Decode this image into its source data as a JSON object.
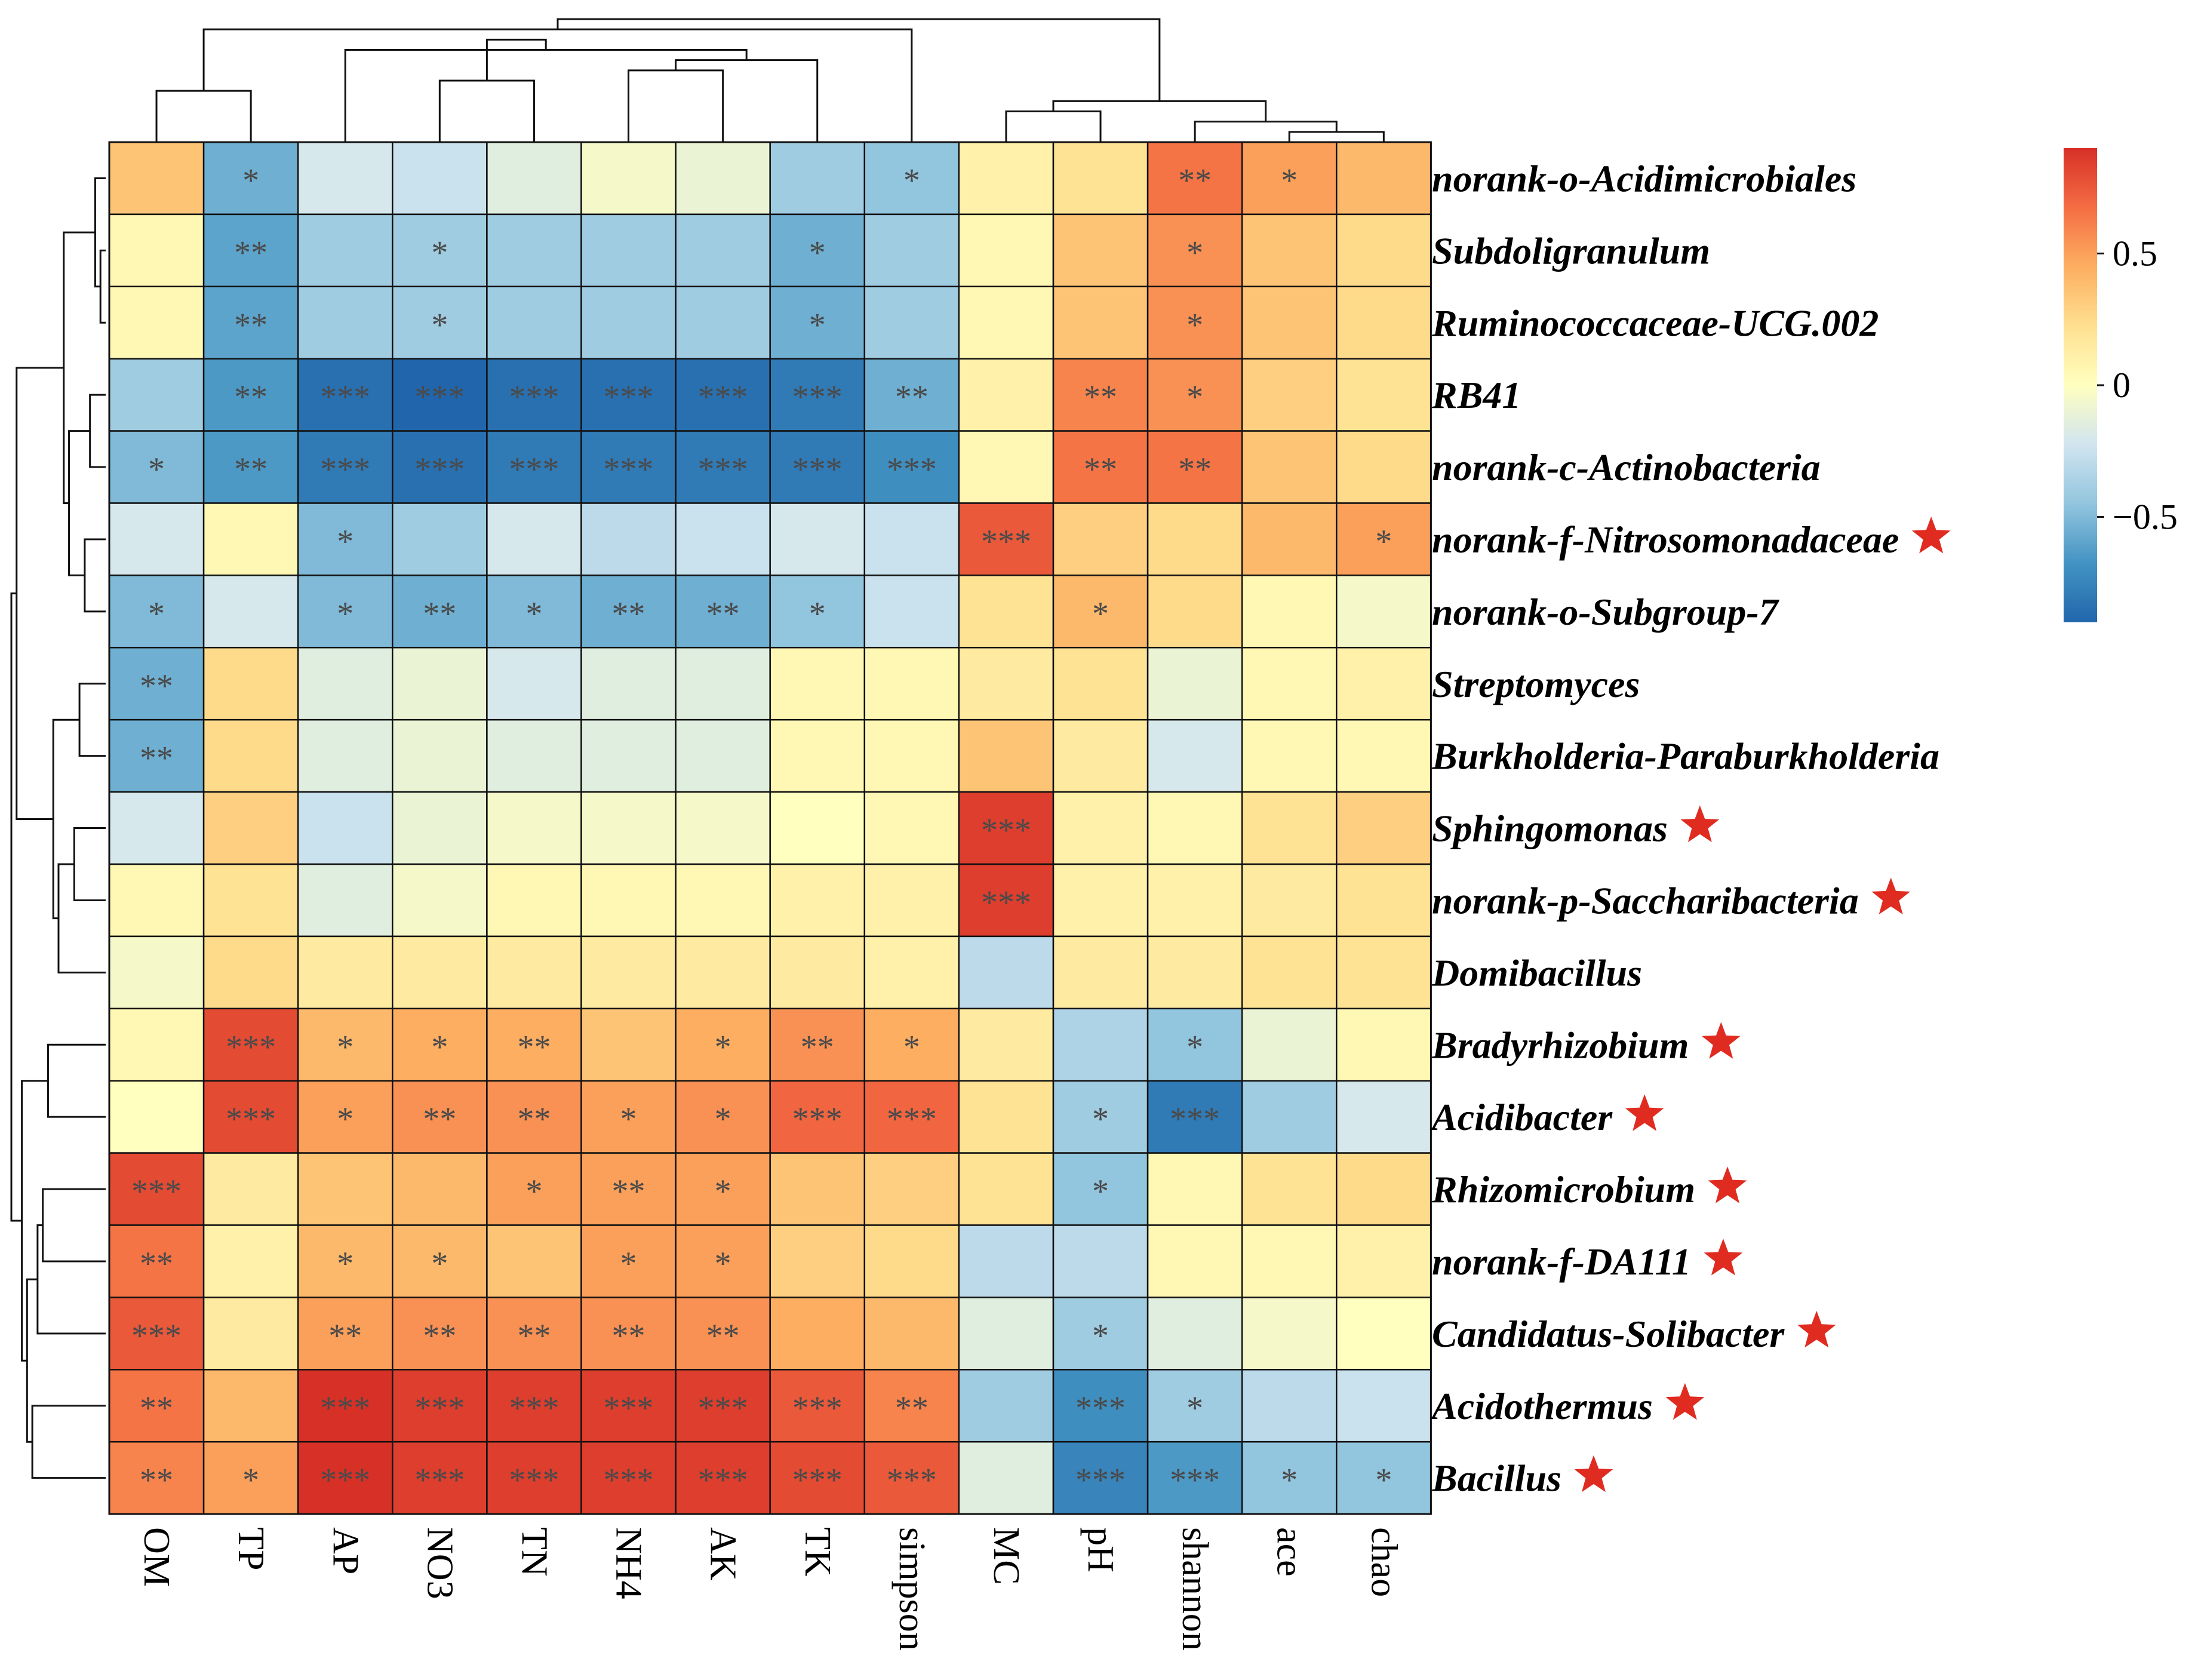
{
  "chart_data": {
    "type": "heatmap",
    "title": "",
    "xlabel": "",
    "ylabel": "",
    "columns": [
      "OM",
      "TP",
      "AP",
      "NO3",
      "TN",
      "NH4",
      "AK",
      "TK",
      "simpson",
      "MC",
      "pH",
      "shannon",
      "ace",
      "chao"
    ],
    "rows": [
      {
        "name": "norank-o-Acidimicrobiales",
        "star": false
      },
      {
        "name": "Subdoligranulum",
        "star": false
      },
      {
        "name": "Ruminococcaceae-UCG.002",
        "star": false
      },
      {
        "name": "RB41",
        "star": false
      },
      {
        "name": "norank-c-Actinobacteria",
        "star": false
      },
      {
        "name": "norank-f-Nitrosomonadaceae",
        "star": true
      },
      {
        "name": "norank-o-Subgroup-7",
        "star": false
      },
      {
        "name": "Streptomyces",
        "star": false
      },
      {
        "name": "Burkholderia-Paraburkholderia",
        "star": false
      },
      {
        "name": "Sphingomonas",
        "star": true
      },
      {
        "name": "norank-p-Saccharibacteria",
        "star": true
      },
      {
        "name": "Domibacillus",
        "star": false
      },
      {
        "name": "Bradyrhizobium",
        "star": true
      },
      {
        "name": "Acidibacter",
        "star": true
      },
      {
        "name": "Rhizomicrobium",
        "star": true
      },
      {
        "name": "norank-f-DA111",
        "star": true
      },
      {
        "name": "Candidatus-Solibacter",
        "star": true
      },
      {
        "name": "Acidothermus",
        "star": true
      },
      {
        "name": "Bacillus",
        "star": true
      }
    ],
    "values": [
      [
        0.35,
        -0.55,
        -0.2,
        -0.25,
        -0.15,
        -0.05,
        -0.1,
        -0.4,
        -0.45,
        0.1,
        0.2,
        0.65,
        0.5,
        0.4
      ],
      [
        0.05,
        -0.6,
        -0.4,
        -0.4,
        -0.4,
        -0.4,
        -0.4,
        -0.55,
        -0.4,
        0.05,
        0.35,
        0.55,
        0.35,
        0.25
      ],
      [
        0.05,
        -0.6,
        -0.4,
        -0.4,
        -0.4,
        -0.4,
        -0.4,
        -0.55,
        -0.4,
        0.05,
        0.35,
        0.55,
        0.35,
        0.25
      ],
      [
        -0.4,
        -0.65,
        -0.85,
        -0.9,
        -0.85,
        -0.85,
        -0.85,
        -0.8,
        -0.55,
        0.1,
        0.6,
        0.55,
        0.3,
        0.2
      ],
      [
        -0.5,
        -0.65,
        -0.8,
        -0.85,
        -0.8,
        -0.8,
        -0.8,
        -0.8,
        -0.7,
        0.05,
        0.65,
        0.65,
        0.35,
        0.25
      ],
      [
        -0.2,
        0.05,
        -0.5,
        -0.4,
        -0.2,
        -0.3,
        -0.25,
        -0.2,
        -0.25,
        0.75,
        0.3,
        0.25,
        0.4,
        0.5
      ],
      [
        -0.5,
        -0.2,
        -0.5,
        -0.55,
        -0.5,
        -0.55,
        -0.55,
        -0.45,
        -0.25,
        0.2,
        0.4,
        0.25,
        0.05,
        -0.05
      ],
      [
        -0.55,
        0.25,
        -0.15,
        -0.1,
        -0.2,
        -0.15,
        -0.15,
        0.05,
        0.05,
        0.15,
        0.2,
        -0.1,
        0.05,
        0.1
      ],
      [
        -0.55,
        0.25,
        -0.15,
        -0.1,
        -0.15,
        -0.15,
        -0.15,
        0.05,
        0.05,
        0.35,
        0.15,
        -0.2,
        0.05,
        0.05
      ],
      [
        -0.2,
        0.3,
        -0.25,
        -0.1,
        -0.05,
        -0.05,
        -0.05,
        0.0,
        0.05,
        0.85,
        0.1,
        0.05,
        0.2,
        0.3
      ],
      [
        0.05,
        0.2,
        -0.15,
        -0.05,
        0.05,
        0.05,
        0.05,
        0.1,
        0.1,
        0.85,
        0.1,
        0.1,
        0.15,
        0.2
      ],
      [
        -0.05,
        0.25,
        0.15,
        0.15,
        0.15,
        0.15,
        0.15,
        0.15,
        0.1,
        -0.3,
        0.15,
        0.15,
        0.2,
        0.2
      ],
      [
        0.05,
        0.8,
        0.4,
        0.45,
        0.45,
        0.35,
        0.45,
        0.55,
        0.45,
        0.15,
        -0.35,
        -0.45,
        -0.1,
        0.05
      ],
      [
        0.0,
        0.8,
        0.5,
        0.55,
        0.55,
        0.5,
        0.55,
        0.7,
        0.7,
        0.2,
        -0.4,
        -0.8,
        -0.4,
        -0.2
      ],
      [
        0.8,
        0.15,
        0.35,
        0.4,
        0.5,
        0.5,
        0.5,
        0.35,
        0.3,
        0.2,
        -0.45,
        0.05,
        0.2,
        0.25
      ],
      [
        0.65,
        0.1,
        0.4,
        0.4,
        0.35,
        0.5,
        0.5,
        0.3,
        0.25,
        -0.3,
        -0.3,
        0.05,
        0.05,
        0.1
      ],
      [
        0.75,
        0.15,
        0.5,
        0.55,
        0.55,
        0.55,
        0.55,
        0.45,
        0.4,
        -0.15,
        -0.4,
        -0.15,
        -0.05,
        0.0
      ],
      [
        0.65,
        0.4,
        0.9,
        0.85,
        0.85,
        0.85,
        0.85,
        0.75,
        0.6,
        -0.4,
        -0.7,
        -0.4,
        -0.3,
        -0.25
      ],
      [
        0.6,
        0.5,
        0.9,
        0.85,
        0.85,
        0.85,
        0.85,
        0.8,
        0.75,
        -0.15,
        -0.75,
        -0.65,
        -0.45,
        -0.45
      ]
    ],
    "significance": [
      [
        "",
        "*",
        "",
        "",
        "",
        "",
        "",
        "",
        "*",
        "",
        "",
        "**",
        "*",
        ""
      ],
      [
        "",
        "**",
        "",
        "*",
        "",
        "",
        "",
        "*",
        "",
        "",
        "",
        "*",
        "",
        ""
      ],
      [
        "",
        "**",
        "",
        "*",
        "",
        "",
        "",
        "*",
        "",
        "",
        "",
        "*",
        "",
        ""
      ],
      [
        "",
        "**",
        "***",
        "***",
        "***",
        "***",
        "***",
        "***",
        "**",
        "",
        "**",
        "*",
        "",
        ""
      ],
      [
        "*",
        "**",
        "***",
        "***",
        "***",
        "***",
        "***",
        "***",
        "***",
        "",
        "**",
        "**",
        "",
        ""
      ],
      [
        "",
        "",
        "*",
        "",
        "",
        "",
        "",
        "",
        "",
        "***",
        "",
        "",
        "",
        "*"
      ],
      [
        "*",
        "",
        "*",
        "**",
        "*",
        "**",
        "**",
        "*",
        "",
        "",
        "*",
        "",
        "",
        ""
      ],
      [
        "**",
        "",
        "",
        "",
        "",
        "",
        "",
        "",
        "",
        "",
        "",
        "",
        "",
        ""
      ],
      [
        "**",
        "",
        "",
        "",
        "",
        "",
        "",
        "",
        "",
        "",
        "",
        "",
        "",
        ""
      ],
      [
        "",
        "",
        "",
        "",
        "",
        "",
        "",
        "",
        "",
        "***",
        "",
        "",
        "",
        ""
      ],
      [
        "",
        "",
        "",
        "",
        "",
        "",
        "",
        "",
        "",
        "***",
        "",
        "",
        "",
        ""
      ],
      [
        "",
        "",
        "",
        "",
        "",
        "",
        "",
        "",
        "",
        "",
        "",
        "",
        "",
        ""
      ],
      [
        "",
        "***",
        "*",
        "*",
        "**",
        "",
        "*",
        "**",
        "*",
        "",
        "",
        "*",
        "",
        ""
      ],
      [
        "",
        "***",
        "*",
        "**",
        "**",
        "*",
        "*",
        "***",
        "***",
        "",
        "*",
        "***",
        "",
        ""
      ],
      [
        "***",
        "",
        "",
        "",
        "*",
        "**",
        "*",
        "",
        "",
        "",
        "*",
        "",
        "",
        ""
      ],
      [
        "**",
        "",
        "*",
        "*",
        "",
        "*",
        "*",
        "",
        "",
        "",
        "",
        "",
        "",
        ""
      ],
      [
        "***",
        "",
        "**",
        "**",
        "**",
        "**",
        "**",
        "",
        "",
        "",
        "*",
        "",
        "",
        ""
      ],
      [
        "**",
        "",
        "***",
        "***",
        "***",
        "***",
        "***",
        "***",
        "**",
        "",
        "***",
        "*",
        "",
        ""
      ],
      [
        "**",
        "*",
        "***",
        "***",
        "***",
        "***",
        "***",
        "***",
        "***",
        "",
        "***",
        "***",
        "*",
        "*"
      ]
    ],
    "colorbar": {
      "range": [
        -0.9,
        0.9
      ],
      "ticks": [
        0.5,
        0,
        -0.5
      ],
      "tick_labels": [
        "0.5",
        "0",
        "−0.5"
      ],
      "colors": [
        "#2166ac",
        "#4393c3",
        "#92c5de",
        "#d1e5f0",
        "#ffffbf",
        "#fee090",
        "#fdae61",
        "#f46d43",
        "#d73027"
      ]
    },
    "marker_color": "#e02b20",
    "col_dendrogram": [
      [
        12,
        13
      ],
      [
        11,
        -1
      ],
      [
        9,
        10
      ],
      [
        -3,
        -2
      ],
      [
        0,
        1
      ],
      [
        3,
        4
      ],
      [
        5,
        6
      ],
      [
        -7,
        7
      ],
      [
        2,
        -8
      ],
      [
        -6,
        -9
      ],
      [
        -5,
        8
      ],
      [
        -11,
        -4
      ]
    ],
    "row_dendrogram": [
      [
        1,
        2
      ],
      [
        0,
        -1
      ],
      [
        3,
        4
      ],
      [
        5,
        6
      ],
      [
        7,
        8
      ],
      [
        9,
        10
      ],
      [
        -3,
        -4
      ],
      [
        -2,
        -7
      ],
      [
        -6,
        11
      ],
      [
        -5,
        -9
      ],
      [
        12,
        13
      ],
      [
        14,
        15
      ],
      [
        -12,
        16
      ],
      [
        17,
        18
      ],
      [
        -13,
        -14
      ],
      [
        -11,
        -15
      ],
      [
        -10,
        -8
      ],
      [
        -16,
        -17
      ]
    ]
  }
}
